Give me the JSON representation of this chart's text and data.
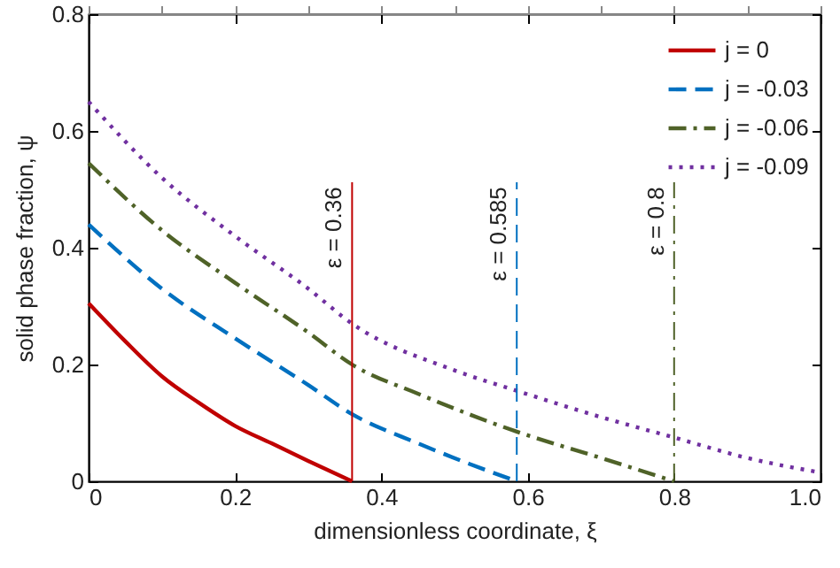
{
  "chart_data": {
    "type": "line",
    "xlabel": "dimensionless coordinate, ξ",
    "ylabel": "solid phase fraction, ψ",
    "xlim": [
      0,
      1
    ],
    "xticks": [
      0,
      0.2,
      0.4,
      0.6,
      0.8,
      {
        "value": 1,
        "label": "1.0"
      }
    ],
    "ylim": [
      0,
      0.8
    ],
    "yticks": [
      0,
      0.2,
      0.4,
      0.6,
      0.8
    ],
    "grid": false,
    "legend": "top right",
    "marker": "none",
    "series": [
      {
        "name": "j = 0",
        "color": "#c00000",
        "line_style": "solid",
        "x": [
          0,
          0.05,
          0.1,
          0.15,
          0.2,
          0.25,
          0.3,
          0.36
        ],
        "values": [
          0.305,
          0.24,
          0.18,
          0.135,
          0.095,
          0.065,
          0.035,
          0
        ]
      },
      {
        "name": "j = -0.03",
        "color": "#0070c0",
        "line_style": "dashed",
        "x": [
          0,
          0.1,
          0.2,
          0.3,
          0.36,
          0.45,
          0.52,
          0.585
        ],
        "values": [
          0.44,
          0.33,
          0.245,
          0.165,
          0.115,
          0.065,
          0.03,
          0
        ]
      },
      {
        "name": "j = -0.06",
        "color": "#4f6228",
        "line_style": "dashdot",
        "x": [
          0,
          0.1,
          0.2,
          0.3,
          0.36,
          0.45,
          0.585,
          0.7,
          0.8
        ],
        "values": [
          0.545,
          0.43,
          0.34,
          0.255,
          0.2,
          0.15,
          0.085,
          0.04,
          0
        ]
      },
      {
        "name": "j = -0.09",
        "color": "#7030a0",
        "line_style": "dotted",
        "x": [
          0,
          0.1,
          0.2,
          0.3,
          0.36,
          0.5,
          0.585,
          0.7,
          0.8,
          0.9,
          1
        ],
        "values": [
          0.65,
          0.52,
          0.42,
          0.33,
          0.27,
          0.19,
          0.155,
          0.11,
          0.075,
          0.04,
          0.015
        ]
      }
    ],
    "ref_lines": [
      {
        "axis": "x",
        "value": 0.36,
        "label": "ε = 0.36",
        "color": "#c00000",
        "line_style": "solid"
      },
      {
        "axis": "x",
        "value": 0.585,
        "label": "ε = 0.585",
        "color": "#0070c0",
        "line_style": "dashed"
      },
      {
        "axis": "x",
        "value": 0.8,
        "label": "ε = 0.8",
        "color": "#4f6228",
        "line_style": "dashdot"
      }
    ]
  }
}
